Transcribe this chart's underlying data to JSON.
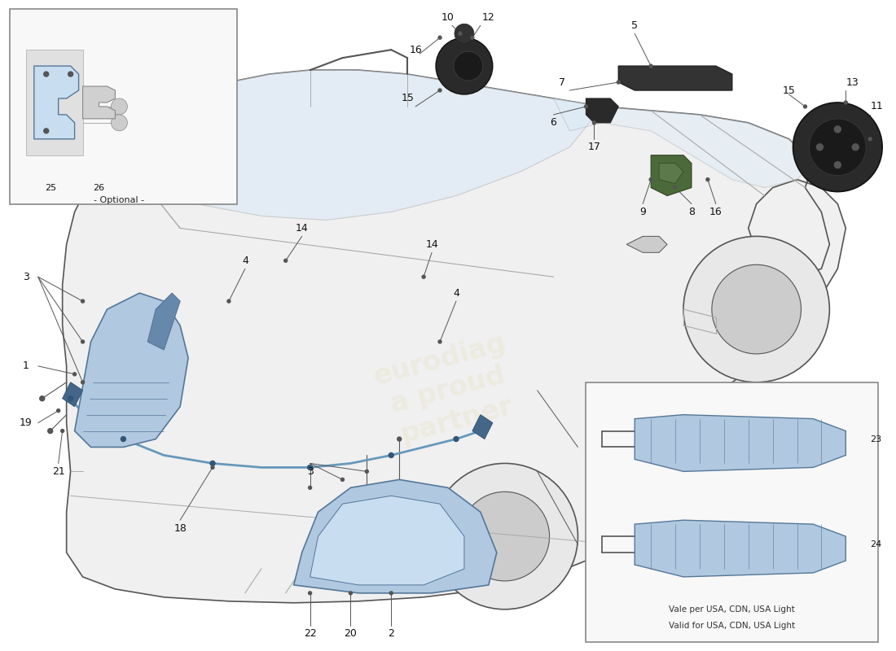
{
  "bg_color": "#ffffff",
  "line_color": "#555555",
  "light_line_color": "#aaaaaa",
  "headlight_fill": "#b0c8e0",
  "headlight_edge": "#557799",
  "optional_fill": "#c8ddf0",
  "optional_edge": "#557799",
  "lamp_fill": "#b0c8e0",
  "lamp_edge": "#557799",
  "tube_color": "#6699bb",
  "box_fill": "#f8f8f8",
  "box_edge": "#888888",
  "label_color": "#111111",
  "label_size": 9,
  "opt_label_size": 8,
  "bottom_text_line1": "Vale per USA, CDN, USA Light",
  "bottom_text_line2": "Valid for USA, CDN, USA Light",
  "optional_text": "- Optional -"
}
